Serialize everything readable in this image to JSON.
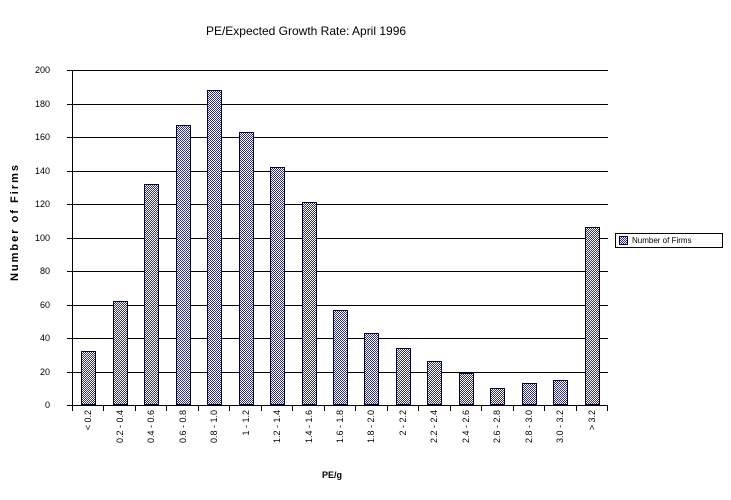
{
  "chart_data": {
    "type": "bar",
    "title": "PE/Expected Growth Rate: April 1996",
    "xlabel": "PE/g",
    "ylabel": "Number of Firms",
    "categories": [
      "< 0.2",
      "0.2 - 0.4",
      "0.4 - 0.6",
      "0.6 - 0.8",
      "0.8 - 1.0",
      "1 - 1.2",
      "1.2 - 1.4",
      "1.4 - 1.6",
      "1.6 - 1.8",
      "1.8 - 2.0",
      "2 - 2.2",
      "2.2 - 2.4",
      "2.4 - 2.6",
      "2.6 - 2.8",
      "2.8 - 3.0",
      "3.0 - 3.2",
      "> 3.2"
    ],
    "values": [
      32,
      62,
      132,
      167,
      188,
      163,
      142,
      121,
      57,
      43,
      34,
      26,
      19,
      10,
      13,
      15,
      106
    ],
    "ylim": [
      0,
      200
    ],
    "yticks": [
      0,
      20,
      40,
      60,
      80,
      100,
      120,
      140,
      160,
      180,
      200
    ],
    "grid": true,
    "legend_position": "right"
  },
  "legend": {
    "label": "Number of Firms"
  },
  "colors": {
    "bar_pattern": "#30307a",
    "bar_border": "#00003a",
    "axis": "#000000",
    "background": "#ffffff"
  }
}
